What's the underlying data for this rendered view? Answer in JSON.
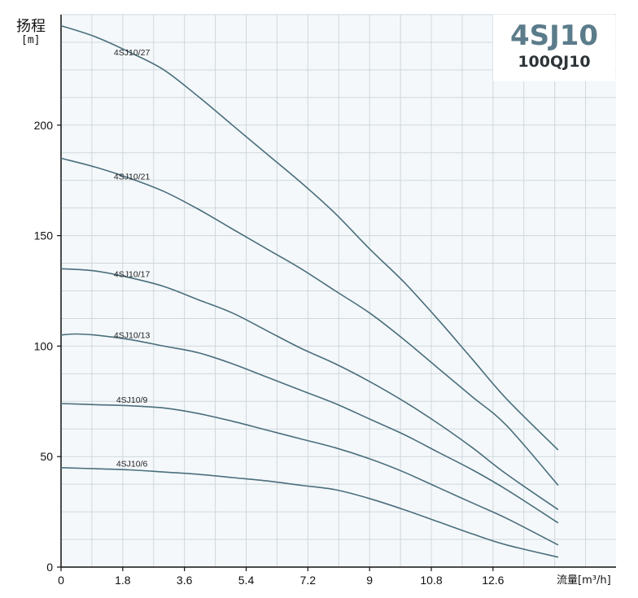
{
  "title_box": {
    "model": "4SJ10",
    "submodel": "100QJ10"
  },
  "chart_data": {
    "type": "line",
    "ylabel": "扬程",
    "yunit": "[m]",
    "xlabel": "流量[m³/h]",
    "xlim": [
      0,
      15.5
    ],
    "ylim": [
      0,
      250
    ],
    "xticks": [
      0,
      1.8,
      3.6,
      5.4,
      7.2,
      9,
      10.8,
      12.6
    ],
    "xtick_labels": [
      "0",
      "1.8",
      "3.6",
      "5.4",
      "7.2",
      "9",
      "10.8",
      "12.6"
    ],
    "yticks": [
      0,
      50,
      100,
      150,
      200
    ],
    "ytick_labels": [
      "0",
      "50",
      "100",
      "150",
      "200"
    ],
    "grid": true,
    "series": [
      {
        "name": "4SJ10/27",
        "x": [
          0,
          1,
          2,
          3,
          4,
          5,
          6,
          7,
          8,
          9,
          10,
          11,
          12,
          13,
          14.5
        ],
        "y": [
          245,
          240,
          233,
          225,
          213,
          200,
          187,
          174,
          160,
          144,
          129,
          112,
          94,
          76,
          53
        ]
      },
      {
        "name": "4SJ10/21",
        "x": [
          0,
          1,
          2,
          3,
          4,
          5,
          6,
          7,
          8,
          9,
          10,
          11,
          12,
          13,
          14.5
        ],
        "y": [
          185,
          181,
          176,
          170,
          162,
          153,
          144,
          135,
          125,
          115,
          103,
          90,
          77,
          64,
          37
        ]
      },
      {
        "name": "4SJ10/17",
        "x": [
          0,
          1,
          2,
          3,
          4,
          5,
          6,
          7,
          8,
          9,
          10,
          11,
          12,
          13,
          14.5
        ],
        "y": [
          135,
          134,
          131,
          127,
          121,
          115,
          107,
          99,
          92,
          84,
          75,
          65,
          54,
          42,
          26
        ]
      },
      {
        "name": "4SJ10/13",
        "x": [
          0,
          0.4,
          1,
          2,
          3,
          4,
          5,
          6,
          7,
          8,
          9,
          10,
          11,
          12,
          13,
          14.5
        ],
        "y": [
          105,
          105.5,
          105,
          103,
          100,
          97,
          92,
          86,
          80,
          74,
          67,
          60,
          52,
          44,
          35,
          20
        ]
      },
      {
        "name": "4SJ10/9",
        "x": [
          0,
          1,
          2,
          3,
          4,
          5,
          6,
          7,
          8,
          9,
          10,
          11,
          12,
          13,
          14.5
        ],
        "y": [
          74,
          73.5,
          73,
          72,
          69.5,
          66,
          62,
          58,
          54,
          49,
          43,
          36,
          29,
          22,
          10
        ]
      },
      {
        "name": "4SJ10/6",
        "x": [
          0,
          1,
          2,
          3,
          4,
          5,
          6,
          7,
          8,
          9,
          10,
          11,
          12,
          13,
          14.5
        ],
        "y": [
          45,
          44.5,
          44,
          43,
          42,
          40.5,
          39,
          37,
          35,
          31,
          26,
          20.5,
          15,
          10,
          4.5
        ]
      }
    ],
    "line_color": "#4a6e7c",
    "background_color": "#f4f8fa",
    "grid_color": "#cfd7dc",
    "axis_color": "#111111"
  }
}
